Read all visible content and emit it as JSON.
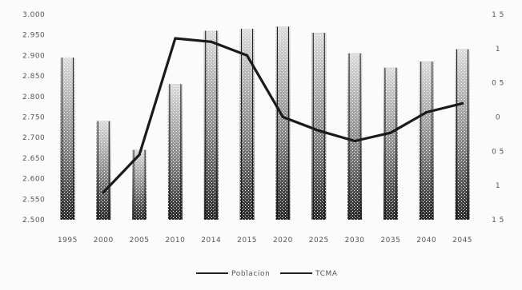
{
  "chart_data": {
    "type": "bar",
    "categories": [
      "1995",
      "2000",
      "2005",
      "2010",
      "2014",
      "2015",
      "2020",
      "2025",
      "2030",
      "2035",
      "2040",
      "2045"
    ],
    "series": [
      {
        "name": "Poblacion",
        "kind": "bar",
        "axis": "left",
        "values": [
          2895,
          2740,
          2670,
          2830,
          2960,
          2965,
          2970,
          2955,
          2905,
          2870,
          2885,
          2915
        ]
      },
      {
        "name": "TCMA",
        "kind": "line",
        "axis": "right",
        "values": [
          null,
          -1.1,
          -0.55,
          1.15,
          1.1,
          0.9,
          0.0,
          -0.2,
          -0.35,
          -0.23,
          0.07,
          0.2
        ]
      }
    ],
    "y_left": {
      "min": 2500,
      "max": 3000,
      "ticks": [
        "3.000",
        "2.950",
        "2.900",
        "2.850",
        "2.800",
        "2.750",
        "2.700",
        "2.650",
        "2.600",
        "2.550",
        "2.500"
      ]
    },
    "y_right": {
      "min": -1.5,
      "max": 1.5,
      "ticks": [
        "1 5",
        "1",
        "0 5",
        "0",
        "0 5",
        "1",
        "1 5"
      ]
    },
    "grid": false,
    "legend_position": "bottom",
    "colors": {
      "bar": "#222222",
      "line": "#1a1a1a"
    }
  }
}
